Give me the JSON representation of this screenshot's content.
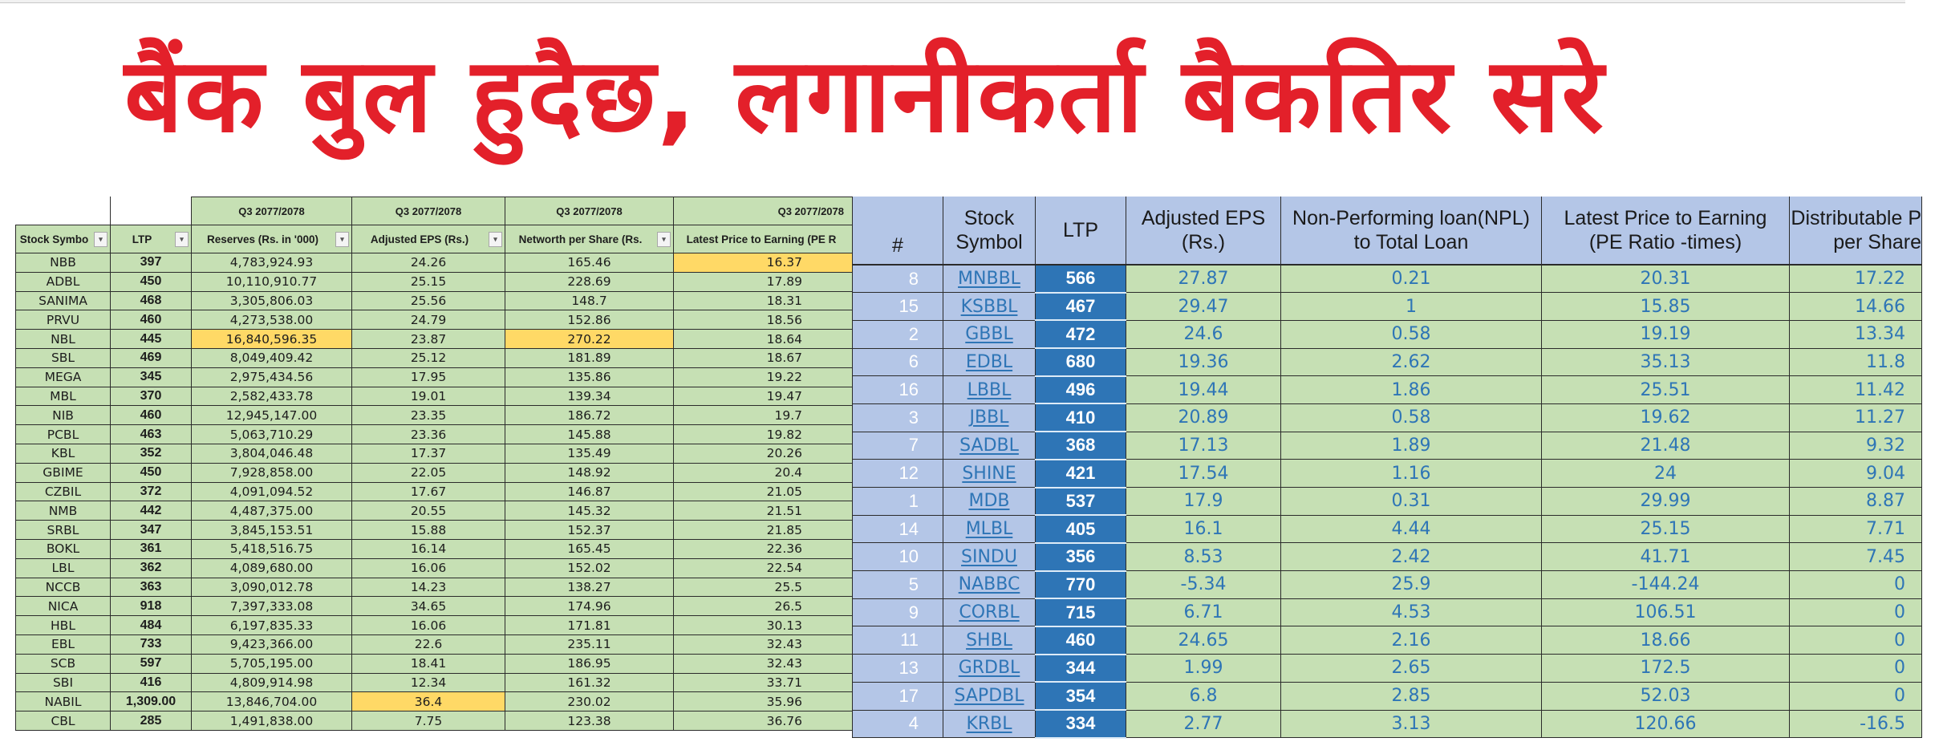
{
  "headline": "बैंक बुल हुदैछ, लगानीकर्ता बैकतिर सरे",
  "colors": {
    "headline": "#e3202a",
    "cell_green": "#c6e0b4",
    "header_blue": "#b4c6e7",
    "ltp_blue": "#2e75b6",
    "highlight_yellow": "#ffd966",
    "link_blue": "#2e75b6"
  },
  "left_table": {
    "period_label": "Q3 2077/2078",
    "headers": [
      "Stock Symbo",
      "LTP",
      "Reserves (Rs. in '000)",
      "Adjusted EPS (Rs.)",
      "Networth per Share (Rs.",
      "Latest Price to Earning (PE R"
    ],
    "filter_icon": "dropdown-arrow-icon",
    "rows": [
      {
        "symbol": "NBB",
        "ltp": "397",
        "reserves": "4,783,924.93",
        "eps": "24.26",
        "networth": "165.46",
        "pe": "16.37",
        "hl": [
          "pe"
        ]
      },
      {
        "symbol": "ADBL",
        "ltp": "450",
        "reserves": "10,110,910.77",
        "eps": "25.15",
        "networth": "228.69",
        "pe": "17.89",
        "hl": []
      },
      {
        "symbol": "SANIMA",
        "ltp": "468",
        "reserves": "3,305,806.03",
        "eps": "25.56",
        "networth": "148.7",
        "pe": "18.31",
        "hl": []
      },
      {
        "symbol": "PRVU",
        "ltp": "460",
        "reserves": "4,273,538.00",
        "eps": "24.79",
        "networth": "152.86",
        "pe": "18.56",
        "hl": []
      },
      {
        "symbol": "NBL",
        "ltp": "445",
        "reserves": "16,840,596.35",
        "eps": "23.87",
        "networth": "270.22",
        "pe": "18.64",
        "hl": [
          "reserves",
          "networth"
        ]
      },
      {
        "symbol": "SBL",
        "ltp": "469",
        "reserves": "8,049,409.42",
        "eps": "25.12",
        "networth": "181.89",
        "pe": "18.67",
        "hl": []
      },
      {
        "symbol": "MEGA",
        "ltp": "345",
        "reserves": "2,975,434.56",
        "eps": "17.95",
        "networth": "135.86",
        "pe": "19.22",
        "hl": []
      },
      {
        "symbol": "MBL",
        "ltp": "370",
        "reserves": "2,582,433.78",
        "eps": "19.01",
        "networth": "139.34",
        "pe": "19.47",
        "hl": []
      },
      {
        "symbol": "NIB",
        "ltp": "460",
        "reserves": "12,945,147.00",
        "eps": "23.35",
        "networth": "186.72",
        "pe": "19.7",
        "hl": []
      },
      {
        "symbol": "PCBL",
        "ltp": "463",
        "reserves": "5,063,710.29",
        "eps": "23.36",
        "networth": "145.88",
        "pe": "19.82",
        "hl": []
      },
      {
        "symbol": "KBL",
        "ltp": "352",
        "reserves": "3,804,046.48",
        "eps": "17.37",
        "networth": "135.49",
        "pe": "20.26",
        "hl": []
      },
      {
        "symbol": "GBIME",
        "ltp": "450",
        "reserves": "7,928,858.00",
        "eps": "22.05",
        "networth": "148.92",
        "pe": "20.4",
        "hl": []
      },
      {
        "symbol": "CZBIL",
        "ltp": "372",
        "reserves": "4,091,094.52",
        "eps": "17.67",
        "networth": "146.87",
        "pe": "21.05",
        "hl": []
      },
      {
        "symbol": "NMB",
        "ltp": "442",
        "reserves": "4,487,375.00",
        "eps": "20.55",
        "networth": "145.32",
        "pe": "21.51",
        "hl": []
      },
      {
        "symbol": "SRBL",
        "ltp": "347",
        "reserves": "3,845,153.51",
        "eps": "15.88",
        "networth": "152.37",
        "pe": "21.85",
        "hl": []
      },
      {
        "symbol": "BOKL",
        "ltp": "361",
        "reserves": "5,418,516.75",
        "eps": "16.14",
        "networth": "165.45",
        "pe": "22.36",
        "hl": []
      },
      {
        "symbol": "LBL",
        "ltp": "362",
        "reserves": "4,089,680.00",
        "eps": "16.06",
        "networth": "152.02",
        "pe": "22.54",
        "hl": []
      },
      {
        "symbol": "NCCB",
        "ltp": "363",
        "reserves": "3,090,012.78",
        "eps": "14.23",
        "networth": "138.27",
        "pe": "25.5",
        "hl": []
      },
      {
        "symbol": "NICA",
        "ltp": "918",
        "reserves": "7,397,333.08",
        "eps": "34.65",
        "networth": "174.96",
        "pe": "26.5",
        "hl": []
      },
      {
        "symbol": "HBL",
        "ltp": "484",
        "reserves": "6,197,835.33",
        "eps": "16.06",
        "networth": "171.81",
        "pe": "30.13",
        "hl": []
      },
      {
        "symbol": "EBL",
        "ltp": "733",
        "reserves": "9,423,366.00",
        "eps": "22.6",
        "networth": "235.11",
        "pe": "32.43",
        "hl": []
      },
      {
        "symbol": "SCB",
        "ltp": "597",
        "reserves": "5,705,195.00",
        "eps": "18.41",
        "networth": "186.95",
        "pe": "32.43",
        "hl": []
      },
      {
        "symbol": "SBI",
        "ltp": "416",
        "reserves": "4,809,914.98",
        "eps": "12.34",
        "networth": "161.32",
        "pe": "33.71",
        "hl": []
      },
      {
        "symbol": "NABIL",
        "ltp": "1,309.00",
        "reserves": "13,846,704.00",
        "eps": "36.4",
        "networth": "230.02",
        "pe": "35.96",
        "hl": [
          "eps"
        ]
      },
      {
        "symbol": "CBL",
        "ltp": "285",
        "reserves": "1,491,838.00",
        "eps": "7.75",
        "networth": "123.38",
        "pe": "36.76",
        "hl": []
      }
    ]
  },
  "right_table": {
    "headers": [
      "#",
      "Stock Symbol",
      "LTP",
      "Adjusted EPS (Rs.)",
      "Non-Performing loan(NPL) to Total Loan",
      "Latest Price to Earning (PE Ratio -times)",
      "Distributable P per Share"
    ],
    "header_lines": [
      [
        "#"
      ],
      [
        "Stock",
        "Symbol"
      ],
      [
        "LTP"
      ],
      [
        "Adjusted EPS",
        "(Rs.)"
      ],
      [
        "Non-Performing loan(NPL)",
        "to Total Loan"
      ],
      [
        "Latest Price to Earning",
        "(PE Ratio -times)"
      ],
      [
        "Distributable P",
        "per Share"
      ]
    ],
    "rows": [
      {
        "num": "8",
        "symbol": "MNBBL",
        "ltp": "566",
        "eps": "27.87",
        "npl": "0.21",
        "pe": "20.31",
        "dist": "17.22"
      },
      {
        "num": "15",
        "symbol": "KSBBL",
        "ltp": "467",
        "eps": "29.47",
        "npl": "1",
        "pe": "15.85",
        "dist": "14.66"
      },
      {
        "num": "2",
        "symbol": "GBBL",
        "ltp": "472",
        "eps": "24.6",
        "npl": "0.58",
        "pe": "19.19",
        "dist": "13.34"
      },
      {
        "num": "6",
        "symbol": "EDBL",
        "ltp": "680",
        "eps": "19.36",
        "npl": "2.62",
        "pe": "35.13",
        "dist": "11.8"
      },
      {
        "num": "16",
        "symbol": "LBBL",
        "ltp": "496",
        "eps": "19.44",
        "npl": "1.86",
        "pe": "25.51",
        "dist": "11.42"
      },
      {
        "num": "3",
        "symbol": "JBBL",
        "ltp": "410",
        "eps": "20.89",
        "npl": "0.58",
        "pe": "19.62",
        "dist": "11.27"
      },
      {
        "num": "7",
        "symbol": "SADBL",
        "ltp": "368",
        "eps": "17.13",
        "npl": "1.89",
        "pe": "21.48",
        "dist": "9.32"
      },
      {
        "num": "12",
        "symbol": "SHINE",
        "ltp": "421",
        "eps": "17.54",
        "npl": "1.16",
        "pe": "24",
        "dist": "9.04"
      },
      {
        "num": "1",
        "symbol": "MDB",
        "ltp": "537",
        "eps": "17.9",
        "npl": "0.31",
        "pe": "29.99",
        "dist": "8.87"
      },
      {
        "num": "14",
        "symbol": "MLBL",
        "ltp": "405",
        "eps": "16.1",
        "npl": "4.44",
        "pe": "25.15",
        "dist": "7.71"
      },
      {
        "num": "10",
        "symbol": "SINDU",
        "ltp": "356",
        "eps": "8.53",
        "npl": "2.42",
        "pe": "41.71",
        "dist": "7.45"
      },
      {
        "num": "5",
        "symbol": "NABBC",
        "ltp": "770",
        "eps": "-5.34",
        "npl": "25.9",
        "pe": "-144.24",
        "dist": "0"
      },
      {
        "num": "9",
        "symbol": "CORBL",
        "ltp": "715",
        "eps": "6.71",
        "npl": "4.53",
        "pe": "106.51",
        "dist": "0"
      },
      {
        "num": "11",
        "symbol": "SHBL",
        "ltp": "460",
        "eps": "24.65",
        "npl": "2.16",
        "pe": "18.66",
        "dist": "0"
      },
      {
        "num": "13",
        "symbol": "GRDBL",
        "ltp": "344",
        "eps": "1.99",
        "npl": "2.65",
        "pe": "172.5",
        "dist": "0"
      },
      {
        "num": "17",
        "symbol": "SAPDBL",
        "ltp": "354",
        "eps": "6.8",
        "npl": "2.85",
        "pe": "52.03",
        "dist": "0"
      },
      {
        "num": "4",
        "symbol": "KRBL",
        "ltp": "334",
        "eps": "2.77",
        "npl": "3.13",
        "pe": "120.66",
        "dist": "-16.5"
      }
    ]
  }
}
